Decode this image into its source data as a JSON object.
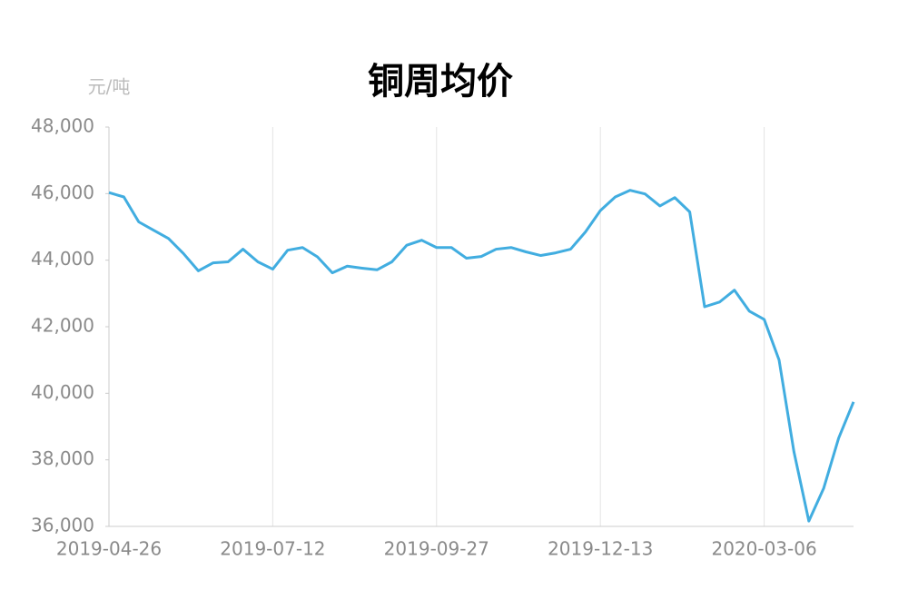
{
  "chart_data": {
    "type": "line",
    "title": "铜周均价",
    "y_label": "元/吨",
    "x": [
      "2019-04-26",
      "2019-05-03",
      "2019-05-10",
      "2019-05-17",
      "2019-05-24",
      "2019-05-31",
      "2019-06-07",
      "2019-06-14",
      "2019-06-21",
      "2019-06-28",
      "2019-07-05",
      "2019-07-12",
      "2019-07-19",
      "2019-07-26",
      "2019-08-02",
      "2019-08-09",
      "2019-08-16",
      "2019-08-23",
      "2019-08-30",
      "2019-09-06",
      "2019-09-13",
      "2019-09-20",
      "2019-09-27",
      "2019-10-04",
      "2019-10-11",
      "2019-10-18",
      "2019-10-25",
      "2019-11-01",
      "2019-11-08",
      "2019-11-15",
      "2019-11-22",
      "2019-11-29",
      "2019-12-06",
      "2019-12-13",
      "2019-12-20",
      "2019-12-27",
      "2020-01-03",
      "2020-01-10",
      "2020-01-17",
      "2020-01-24",
      "2020-02-07",
      "2020-02-14",
      "2020-02-21",
      "2020-02-28",
      "2020-03-06",
      "2020-03-13",
      "2020-03-20",
      "2020-03-27",
      "2020-04-03",
      "2020-04-10",
      "2020-04-17"
    ],
    "series": [
      {
        "name": "铜周均价",
        "color": "#41ade0",
        "values": [
          46030,
          45900,
          45150,
          44900,
          44650,
          44200,
          43680,
          43920,
          43950,
          44330,
          43950,
          43730,
          44300,
          44380,
          44100,
          43620,
          43820,
          43760,
          43710,
          43950,
          44450,
          44600,
          44380,
          44380,
          44060,
          44110,
          44330,
          44380,
          44250,
          44140,
          44220,
          44330,
          44850,
          45490,
          45900,
          46100,
          45990,
          45630,
          45880,
          45450,
          42600,
          42740,
          43100,
          42470,
          42220,
          41000,
          38240,
          36160,
          37150,
          38650,
          39740
        ]
      }
    ],
    "xticks": [
      "2019-04-26",
      "2019-07-12",
      "2019-09-27",
      "2019-12-13",
      "2020-03-06"
    ],
    "ylim": [
      36000,
      48000
    ],
    "yticks": [
      {
        "value": 36000,
        "label": "36,000"
      },
      {
        "value": 38000,
        "label": "38,000"
      },
      {
        "value": 40000,
        "label": "40,000"
      },
      {
        "value": 42000,
        "label": "42,000"
      },
      {
        "value": 44000,
        "label": "44,000"
      },
      {
        "value": 46000,
        "label": "46,000"
      },
      {
        "value": 48000,
        "label": "48,000"
      }
    ],
    "grid": "x"
  }
}
